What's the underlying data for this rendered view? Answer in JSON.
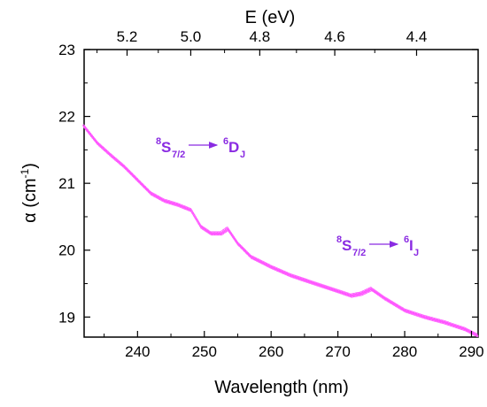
{
  "chart_data": {
    "type": "line",
    "xlabel": "Wavelength (nm)",
    "ylabel_main": "α (cm",
    "ylabel_sup": "-1",
    "ylabel_close": ")",
    "top_xlabel": "E (eV)",
    "xlim": [
      232,
      291
    ],
    "ylim": [
      18.7,
      23
    ],
    "x_ticks": [
      240,
      250,
      260,
      270,
      280,
      290
    ],
    "y_ticks": [
      19,
      20,
      21,
      22,
      23
    ],
    "top_ticks_eV": [
      5.2,
      5.0,
      4.8,
      4.6,
      4.4
    ],
    "top_tick_labels": [
      "5.2",
      "5.0",
      "4.8",
      "4.6",
      "4.4"
    ],
    "grid": false,
    "series": [
      {
        "color": "#ff55ff",
        "x": [
          232,
          234,
          236,
          238,
          240,
          242,
          244,
          246,
          248,
          249.5,
          251,
          252.5,
          253.5,
          255,
          257,
          260,
          263,
          266,
          269,
          272,
          273.5,
          275,
          277,
          280,
          283,
          286,
          289,
          291
        ],
        "y": [
          21.85,
          21.6,
          21.42,
          21.25,
          21.05,
          20.85,
          20.74,
          20.68,
          20.6,
          20.35,
          20.25,
          20.25,
          20.32,
          20.1,
          19.9,
          19.75,
          19.62,
          19.52,
          19.42,
          19.32,
          19.35,
          19.42,
          19.28,
          19.1,
          19.0,
          18.92,
          18.82,
          18.72
        ]
      }
    ],
    "annotations": [
      {
        "sup": "8",
        "main": "S",
        "sub": "7/2",
        "to_sup": "6",
        "to_main": "D",
        "to_sub": "J"
      },
      {
        "sup": "8",
        "main": "S",
        "sub": "7/2",
        "to_sup": "6",
        "to_main": "I",
        "to_sub": "J"
      }
    ],
    "annotation_color": "#8a2be2"
  }
}
